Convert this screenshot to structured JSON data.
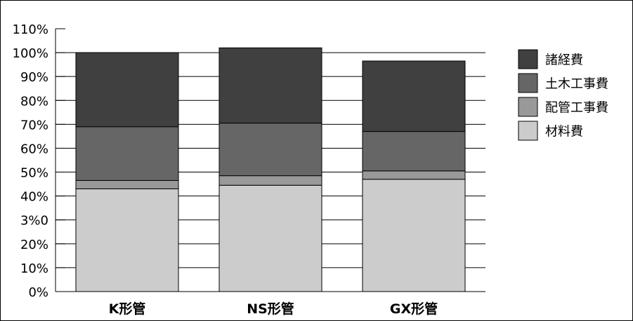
{
  "chart_data": {
    "type": "bar",
    "stacked": true,
    "categories": [
      "K形管",
      "NS形管",
      "GX形管"
    ],
    "yticks": [
      "0%",
      "10%",
      "20%",
      "3%0",
      "40%",
      "50%",
      "60%",
      "70%",
      "80%",
      "90%",
      "100%",
      "110%"
    ],
    "ylim": [
      0,
      110
    ],
    "grid": true,
    "legend_position": "right",
    "series": [
      {
        "name": "材料費",
        "values": [
          43,
          44.5,
          47
        ],
        "color": "#cccccc"
      },
      {
        "name": "配管工事費",
        "values": [
          3.5,
          4,
          3.5
        ],
        "color": "#999999"
      },
      {
        "name": "土木工事費",
        "values": [
          22.5,
          22,
          16.5
        ],
        "color": "#666666"
      },
      {
        "name": "諸経費",
        "values": [
          31,
          31.5,
          29.5
        ],
        "color": "#404040"
      }
    ],
    "legend_order": [
      3,
      2,
      1,
      0
    ]
  }
}
